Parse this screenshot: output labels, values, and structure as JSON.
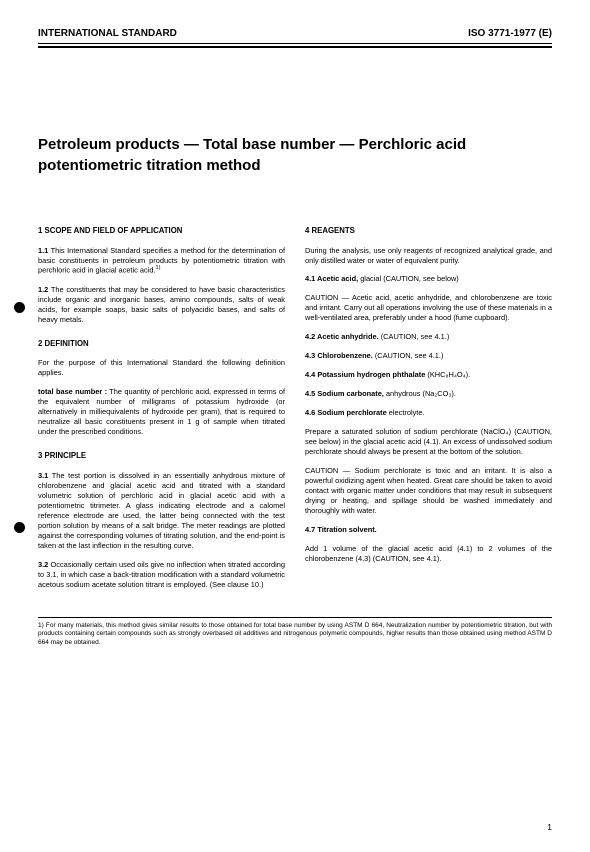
{
  "header": {
    "left": "INTERNATIONAL STANDARD",
    "right": "ISO 3771-1977 (E)"
  },
  "title": "Petroleum products — Total base number — Perchloric acid potentiometric titration method",
  "left_col": {
    "s1": {
      "head": "1  SCOPE AND FIELD OF APPLICATION",
      "p1_num": "1.1",
      "p1": "This International Standard specifies a method for the determination of basic constituents in petroleum products by potentiometric titration with perchloric acid in glacial acetic acid.",
      "p1_sup": "1)",
      "p2_num": "1.2",
      "p2": "The constituents that may be considered to have basic characteristics include organic and inorganic bases, amino compounds, salts of weak acids, for example soaps, basic salts of polyacidic bases, and salts of heavy metals."
    },
    "s2": {
      "head": "2  DEFINITION",
      "p1": "For the purpose of this International Standard the following definition applies.",
      "p2_term": "total base number :",
      "p2": "The quantity of perchloric acid, expressed in terms of the equivalent number of milligrams of potassium hydroxide (or alternatively in milliequivalents of hydroxide per gram), that is required to neutralize all basic constituents present in 1 g of sample when titrated under the prescribed conditions."
    },
    "s3": {
      "head": "3  PRINCIPLE",
      "p1_num": "3.1",
      "p1": "The test portion is dissolved in an essentially anhydrous mixture of chlorobenzene and glacial acetic acid and titrated with a standard volumetric solution of perchloric acid in glacial acetic acid with a potentiometric titrimeter. A glass indicating electrode and a calomel reference electrode are used, the latter being connected with the test portion solution by means of a salt bridge. The meter readings are plotted against the corresponding volumes of titrating solution, and the end-point is taken at the last inflection in the resulting curve.",
      "p2_num": "3.2",
      "p2": "Occasionally certain used oils give no inflection when titrated according to 3.1, in which case a back-titration modification with a standard volumetric acetous sodium acetate solution titrant is employed. (See clause 10.)"
    }
  },
  "right_col": {
    "s4": {
      "head": "4  REAGENTS",
      "p1": "During the analysis, use only reagents of recognized analytical grade, and only distilled water or water of equivalent purity.",
      "r41_head": "4.1  Acetic acid,",
      "r41_tail": " glacial (CAUTION, see below)",
      "r41_caution": "CAUTION — Acetic acid, acetic anhydride, and chlorobenzene are toxic and irritant. Carry out all operations involving the use of these materials in a well-ventilated area, preferably under a hood (fume cupboard).",
      "r42": "4.2  Acetic anhydride.",
      "r42_tail": " (CAUTION, see 4.1.)",
      "r43": "4.3  Chlorobenzene.",
      "r43_tail": " (CAUTION, see 4.1.)",
      "r44": "4.4  Potassium hydrogen phthalate",
      "r44_formula": " (KHC₈H₄O₄).",
      "r45": "4.5  Sodium carbonate,",
      "r45_tail": " anhydrous (Na₂CO₃).",
      "r46": "4.6  Sodium perchlorate",
      "r46_tail": " electrolyte.",
      "r46_p1": "Prepare a saturated solution of sodium perchlorate (NaClO₄) (CAUTION, see below) in the glacial acetic acid (4.1). An excess of undissolved sodium perchlorate should always be present at the bottom of the solution.",
      "r46_caution": "CAUTION — Sodium perchlorate is toxic and an irritant. It is also a powerful oxidizing agent when heated. Great care should be taken to avoid contact with organic matter under conditions that may result in subsequent drying or heating, and spillage should be washed immediately and thoroughly with water.",
      "r47": "4.7  Titration solvent.",
      "r47_p1": "Add 1 volume of the glacial acetic acid (4.1) to 2 volumes of the chlorobenzene (4.3) (CAUTION, see 4.1)."
    }
  },
  "footnote": "1)  For many materials, this method gives similar results to those obtained for total base number by using ASTM D 664, Neutralization number by potentiometric titration, but with products containing certain compounds such as strongly overbased oil additives and nitrogenous polymeric compounds, higher results than those obtained using method ASTM D 664 may be obtained.",
  "page_number": "1"
}
